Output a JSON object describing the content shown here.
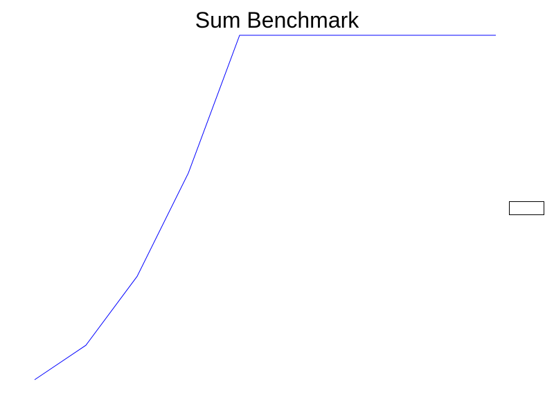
{
  "chart_data": {
    "type": "line",
    "title": "Sum Benchmark",
    "xlabel": "",
    "ylabel": "",
    "x": [
      0,
      1,
      2,
      3,
      4,
      5,
      6,
      7,
      8,
      9
    ],
    "series": [
      {
        "values": [
          0,
          1,
          3,
          6,
          10,
          10,
          10,
          10,
          10,
          10
        ],
        "color": "#0000ff"
      }
    ],
    "xlim": [
      0,
      9
    ],
    "ylim": [
      0,
      10
    ],
    "grid": false,
    "axes_visible": false,
    "legend": "right"
  }
}
